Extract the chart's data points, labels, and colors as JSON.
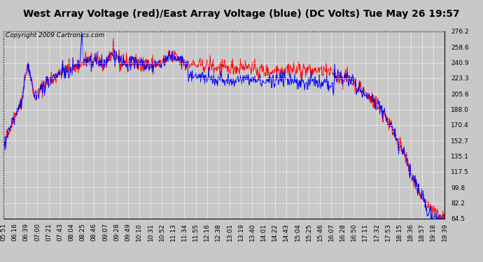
{
  "title": "West Array Voltage (red)/East Array Voltage (blue) (DC Volts) Tue May 26 19:57",
  "copyright": "Copyright 2009 Cartronics.com",
  "yticks": [
    276.2,
    258.6,
    240.9,
    223.3,
    205.6,
    188.0,
    170.4,
    152.7,
    135.1,
    117.5,
    99.8,
    82.2,
    64.5
  ],
  "xtick_labels": [
    "05:51",
    "06:16",
    "06:39",
    "07:00",
    "07:21",
    "07:43",
    "08:04",
    "08:25",
    "08:46",
    "09:07",
    "09:28",
    "09:49",
    "10:10",
    "10:31",
    "10:52",
    "11:13",
    "11:34",
    "11:55",
    "12:16",
    "12:38",
    "13:01",
    "13:19",
    "13:40",
    "14:01",
    "14:22",
    "14:43",
    "15:04",
    "15:25",
    "15:46",
    "16:07",
    "16:28",
    "16:50",
    "17:11",
    "17:32",
    "17:53",
    "18:15",
    "18:36",
    "18:57",
    "19:18",
    "19:39"
  ],
  "ymin": 64.5,
  "ymax": 276.2,
  "fig_bg_color": "#c8c8c8",
  "plot_bg_color": "#c8c8c8",
  "red_color": "#ff0000",
  "blue_color": "#0000ff",
  "title_fontsize": 10,
  "copyright_fontsize": 6.5,
  "tick_fontsize": 6.5,
  "grid_color": "#ffffff",
  "line_width": 0.7
}
